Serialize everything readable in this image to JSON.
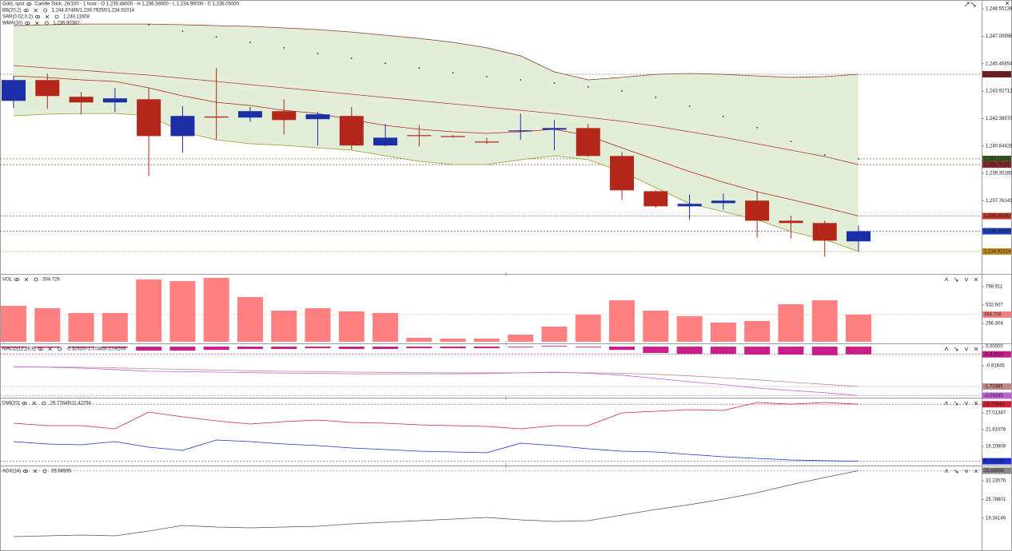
{
  "chart_data": [
    {
      "type": "candlestick",
      "title": "Gold, spot",
      "subtitle": "Candle Stick, 26/100 - 1 hour - O 1,235.48000 - H 1,236.38000 - L 1,234.90000 - C 1,236.05000",
      "up_color": "#1c2ea6",
      "down_color": "#b3261a",
      "open": [
        1243.38,
        1244.55,
        1243.61,
        1243.29,
        1243.47,
        1241.4,
        1242.5,
        1242.44,
        1242.8,
        1242.35,
        1242.53,
        1240.87,
        1241.45,
        1241.4,
        1241.09,
        1241.67,
        1241.76,
        1241.85,
        1240.28,
        1238.3,
        1237.45,
        1237.63,
        1237.77,
        1236.64,
        1236.51,
        1235.48
      ],
      "high": [
        1244.78,
        1244.91,
        1243.88,
        1244.1,
        1244.1,
        1243.07,
        1245.23,
        1243.03,
        1243.47,
        1242.75,
        1243.03,
        1242.08,
        1242.02,
        1241.45,
        1241.31,
        1242.66,
        1242.3,
        1242.08,
        1240.51,
        1238.35,
        1238.12,
        1238.17,
        1238.3,
        1236.91,
        1236.64,
        1236.38
      ],
      "low": [
        1242.98,
        1242.93,
        1242.62,
        1242.75,
        1239.16,
        1240.46,
        1241.18,
        1242.21,
        1241.49,
        1240.87,
        1240.64,
        1240.82,
        1240.82,
        1241.31,
        1240.96,
        1241.18,
        1240.6,
        1240.24,
        1237.81,
        1237.36,
        1236.69,
        1237.27,
        1235.69,
        1235.65,
        1234.62,
        1234.9
      ],
      "close": [
        1244.55,
        1243.65,
        1243.29,
        1243.52,
        1241.4,
        1242.53,
        1242.44,
        1242.8,
        1242.3,
        1242.62,
        1240.87,
        1241.31,
        1241.4,
        1241.36,
        1241.04,
        1241.72,
        1241.85,
        1240.28,
        1238.35,
        1237.45,
        1237.59,
        1237.77,
        1236.64,
        1236.51,
        1235.52,
        1236.05
      ],
      "bands": {
        "name": "BB(20,2)",
        "readout": "1,244.87486/1,239.79250/1,234.91014",
        "readout_color": "#c0392b",
        "fill": "#e3eed8",
        "upper_color": "#8a3b2e",
        "middle_color": "#b03a2e",
        "lower_color": "#9a9a2a",
        "upper": [
          1247.61,
          1247.66,
          1247.7,
          1247.7,
          1247.7,
          1247.66,
          1247.61,
          1247.57,
          1247.48,
          1247.39,
          1247.25,
          1247.07,
          1246.89,
          1246.67,
          1246.36,
          1245.91,
          1245.01,
          1244.56,
          1244.7,
          1244.87,
          1244.92,
          1244.87,
          1244.78,
          1244.7,
          1244.74,
          1244.87486
        ],
        "middle": [
          1245.37,
          1245.23,
          1245.1,
          1244.96,
          1244.83,
          1244.65,
          1244.47,
          1244.29,
          1244.11,
          1243.93,
          1243.75,
          1243.57,
          1243.39,
          1243.21,
          1243.03,
          1242.85,
          1242.67,
          1242.45,
          1242.23,
          1241.96,
          1241.64,
          1241.33,
          1240.97,
          1240.61,
          1240.25,
          1239.7925
        ],
        "lower": [
          1242.54,
          1242.63,
          1242.67,
          1242.67,
          1242.54,
          1241.64,
          1241.19,
          1240.97,
          1240.88,
          1240.74,
          1240.61,
          1240.29,
          1239.98,
          1239.8,
          1239.8,
          1240.07,
          1240.29,
          1240.07,
          1239.4,
          1238.5,
          1237.6,
          1237.15,
          1236.7,
          1236.03,
          1235.58,
          1234.91014
        ]
      },
      "series": [
        {
          "name": "SAR(0.02,0.2)",
          "readout": "1,240.11608",
          "style": "dots",
          "color": "#555555",
          "values": [
            null,
            null,
            null,
            null,
            1247.66,
            1247.3,
            1246.98,
            1246.67,
            1246.36,
            1246.04,
            1245.77,
            1245.5,
            1245.23,
            1244.96,
            1244.74,
            1244.56,
            1244.38,
            1244.16,
            1243.93,
            1243.57,
            1243.08,
            1242.5,
            1241.87,
            1241.1,
            1240.34,
            1240.11608
          ]
        },
        {
          "name": "WMA(10)",
          "readout": "1,236.90382",
          "style": "line",
          "color": "#b3261a",
          "values": [
            1244.78,
            1244.69,
            1244.56,
            1244.47,
            1244.11,
            1243.66,
            1243.3,
            1243.12,
            1242.85,
            1242.67,
            1242.32,
            1242.0,
            1241.78,
            1241.64,
            1241.55,
            1241.64,
            1241.78,
            1241.42,
            1240.74,
            1240.07,
            1239.4,
            1238.81,
            1238.27,
            1237.83,
            1237.38,
            1236.90382
          ]
        }
      ],
      "ylim": [
        1233.65,
        1249.05
      ],
      "yticks": [
        {
          "value": 1237.76143,
          "label": "1,237.76143"
        },
        {
          "value": 1239.30285,
          "label": "1,239.30285"
        },
        {
          "value": 1240.84428,
          "label": "1,240.84428"
        },
        {
          "value": 1242.3857,
          "label": "1,242.38570"
        },
        {
          "value": 1243.92712,
          "label": "1,243.92712"
        },
        {
          "value": 1245.46854,
          "label": "1,245.46854"
        },
        {
          "value": 1247.00996,
          "label": "1,247.00996"
        },
        {
          "value": 1248.55138,
          "label": "1,248.55138"
        }
      ],
      "last_values": [
        {
          "value": 1244.87486,
          "label": "1,244.87486",
          "color": "#7a1f1f"
        },
        {
          "value": 1240.11608,
          "label": "1,240.11608",
          "color": "#3f5a22"
        },
        {
          "value": 1239.7925,
          "label": "1,239.79250",
          "color": "#8b2a2a"
        },
        {
          "value": 1236.90382,
          "label": "1,236.90382",
          "color": "#c0392b"
        },
        {
          "value": 1236.05,
          "label": "1,236.05000",
          "color": "#1a3fbf"
        },
        {
          "value": 1234.91014,
          "label": "1,234.91014",
          "color": "#c08a1a"
        }
      ]
    },
    {
      "type": "bar",
      "title": "VOL",
      "readout": "394.726",
      "readout_color": "#f08080",
      "color": "#ff8080",
      "values": [
        521,
        486,
        417,
        417,
        902,
        879,
        926,
        648,
        451,
        486,
        440,
        417,
        58,
        46,
        46,
        104,
        220,
        393,
        602,
        451,
        370,
        278,
        301,
        544,
        602,
        394.726
      ],
      "ylim": [
        0,
        960
      ],
      "yticks": [
        266.304,
        532.607,
        798.911
      ],
      "last_values": [
        {
          "value": 394.726,
          "label": "394.726",
          "color": "#f08080"
        }
      ]
    },
    {
      "type": "histogram-lines",
      "title": "MACD(12,26,9)",
      "readout": "-0.32910/-1.70385/-2.09295",
      "readout_color": "#c81e8c",
      "color": "#c81e8c",
      "values": [
        -0.05,
        -0.05,
        -0.05,
        -0.05,
        -0.17,
        -0.17,
        -0.14,
        -0.1,
        -0.1,
        -0.07,
        -0.1,
        -0.1,
        -0.07,
        -0.07,
        -0.07,
        -0.03,
        0.03,
        -0.03,
        -0.14,
        -0.27,
        -0.31,
        -0.31,
        -0.34,
        -0.34,
        -0.37,
        -0.3291
      ],
      "series": [
        {
          "color": "#c08a8a",
          "values": [
            -0.86,
            -0.87,
            -0.88,
            -0.91,
            -0.94,
            -0.97,
            -1.0,
            -1.03,
            -1.05,
            -1.07,
            -1.09,
            -1.1,
            -1.11,
            -1.12,
            -1.12,
            -1.12,
            -1.11,
            -1.12,
            -1.14,
            -1.18,
            -1.25,
            -1.33,
            -1.42,
            -1.52,
            -1.61,
            -1.70385
          ]
        },
        {
          "color": "#c060d0",
          "values": [
            -0.86,
            -0.88,
            -0.92,
            -0.98,
            -1.05,
            -1.07,
            -1.09,
            -1.11,
            -1.13,
            -1.14,
            -1.16,
            -1.16,
            -1.16,
            -1.16,
            -1.15,
            -1.12,
            -1.09,
            -1.14,
            -1.22,
            -1.36,
            -1.5,
            -1.62,
            -1.77,
            -1.87,
            -1.97,
            -2.09295
          ]
        }
      ],
      "ylim": [
        -2.18,
        0.07
      ],
      "yticks": [
        -0.81645,
        {
          "value": 0,
          "label": "0.00000"
        }
      ],
      "last_values": [
        {
          "value": -0.3291,
          "label": "-0.32910",
          "color": "#c81e8c"
        },
        {
          "value": -1.70385,
          "label": "-1.70385",
          "color": "#c08a8a"
        },
        {
          "value": -2.09295,
          "label": "-2.09295",
          "color": "#c060d0"
        }
      ]
    },
    {
      "type": "line",
      "title": "DMI(20)",
      "readout": "29.77849/11.42294",
      "readout_color": "#d0203a",
      "series": [
        {
          "color": "#d0203a",
          "values": [
            23.67,
            22.9,
            22.9,
            21.87,
            27.27,
            25.73,
            24.44,
            23.41,
            24.19,
            24.7,
            23.93,
            23.67,
            23.16,
            22.9,
            22.64,
            21.87,
            22.9,
            22.9,
            27.01,
            27.53,
            28.04,
            27.78,
            30.35,
            29.78,
            30.35,
            29.77849
          ]
        },
        {
          "color": "#1c2ed0",
          "values": [
            17.76,
            16.99,
            16.73,
            17.76,
            15.96,
            14.93,
            18.27,
            17.76,
            16.99,
            16.47,
            15.7,
            15.19,
            14.67,
            14.42,
            14.16,
            17.24,
            16.47,
            15.45,
            14.67,
            14.42,
            13.65,
            12.88,
            12.36,
            11.85,
            11.6,
            11.42294
          ]
        }
      ],
      "ylim": [
        10.04,
        31.38
      ],
      "yticks": [
        16.20808,
        21.61078,
        27.01347
      ],
      "last_values": [
        {
          "value": 29.77849,
          "label": "29.77849",
          "color": "#d0203a"
        },
        {
          "value": 11.42294,
          "label": "11.42294",
          "color": "#1c2ed0"
        }
      ]
    },
    {
      "type": "line",
      "title": "ADX(14)",
      "readout": "35.68595",
      "readout_color": "#777777",
      "series": [
        {
          "color": "#555555",
          "values": [
            13.03,
            13.3,
            13.58,
            13.3,
            14.95,
            16.87,
            16.32,
            16.05,
            16.32,
            16.6,
            17.42,
            17.97,
            18.52,
            19.07,
            19.62,
            18.79,
            18.24,
            18.52,
            20.44,
            22.36,
            24.01,
            25.93,
            28.12,
            30.86,
            33.33,
            35.68595
          ]
        }
      ],
      "ylim": [
        8.09,
        36.9
      ],
      "yticks": [
        19.34146,
        25.78801,
        32.23576
      ],
      "last_values": [
        {
          "value": 35.68595,
          "label": "35.68595",
          "color": "#888888"
        }
      ]
    }
  ]
}
